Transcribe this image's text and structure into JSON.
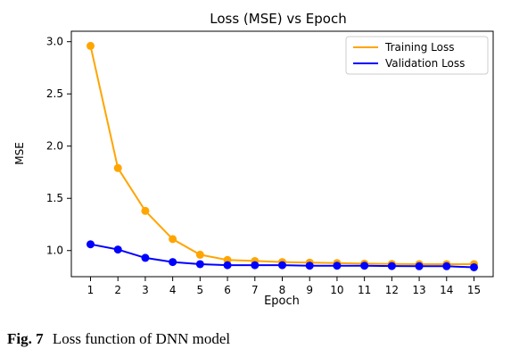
{
  "chart_data": {
    "type": "line",
    "title": "Loss (MSE) vs Epoch",
    "xlabel": "Epoch",
    "ylabel": "MSE",
    "x": [
      1,
      2,
      3,
      4,
      5,
      6,
      7,
      8,
      9,
      10,
      11,
      12,
      13,
      14,
      15
    ],
    "xlim": [
      0.3,
      15.7
    ],
    "ylim": [
      0.75,
      3.1
    ],
    "yticks": [
      "1.0",
      "1.5",
      "2.0",
      "2.5",
      "3.0"
    ],
    "ytick_values": [
      1.0,
      1.5,
      2.0,
      2.5,
      3.0
    ],
    "grid": false,
    "legend_position": "top-right",
    "series": [
      {
        "name": "Training Loss",
        "color": "#FFA500",
        "values": [
          2.96,
          1.79,
          1.38,
          1.11,
          0.96,
          0.91,
          0.9,
          0.89,
          0.885,
          0.88,
          0.875,
          0.872,
          0.87,
          0.87,
          0.87
        ]
      },
      {
        "name": "Validation Loss",
        "color": "#0000FF",
        "values": [
          1.06,
          1.01,
          0.93,
          0.89,
          0.87,
          0.86,
          0.86,
          0.86,
          0.855,
          0.855,
          0.855,
          0.852,
          0.85,
          0.85,
          0.84
        ]
      }
    ]
  },
  "caption": {
    "label": "Fig. 7",
    "text": "Loss function of DNN model"
  }
}
